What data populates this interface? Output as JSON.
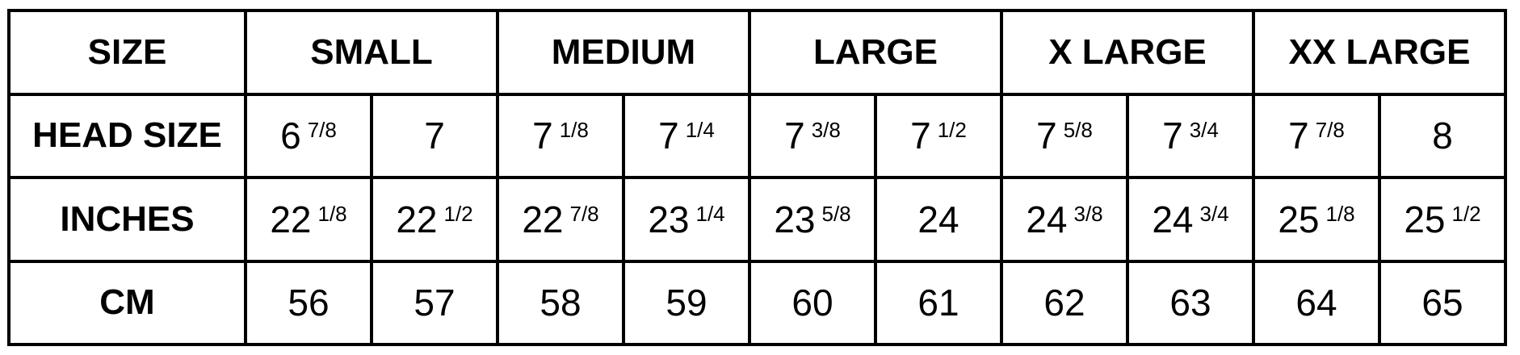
{
  "row_labels": {
    "size": "SIZE",
    "head_size": "HEAD SIZE",
    "inches": "INCHES",
    "cm": "CM"
  },
  "sizes": [
    "SMALL",
    "MEDIUM",
    "LARGE",
    "X LARGE",
    "XX LARGE"
  ],
  "head_size": [
    {
      "whole": "6",
      "frac": "7/8"
    },
    {
      "whole": "7",
      "frac": ""
    },
    {
      "whole": "7",
      "frac": "1/8"
    },
    {
      "whole": "7",
      "frac": "1/4"
    },
    {
      "whole": "7",
      "frac": "3/8"
    },
    {
      "whole": "7",
      "frac": "1/2"
    },
    {
      "whole": "7",
      "frac": "5/8"
    },
    {
      "whole": "7",
      "frac": "3/4"
    },
    {
      "whole": "7",
      "frac": "7/8"
    },
    {
      "whole": "8",
      "frac": ""
    }
  ],
  "inches": [
    {
      "whole": "22",
      "frac": "1/8"
    },
    {
      "whole": "22",
      "frac": "1/2"
    },
    {
      "whole": "22",
      "frac": "7/8"
    },
    {
      "whole": "23",
      "frac": "1/4"
    },
    {
      "whole": "23",
      "frac": "5/8"
    },
    {
      "whole": "24",
      "frac": ""
    },
    {
      "whole": "24",
      "frac": "3/8"
    },
    {
      "whole": "24",
      "frac": "3/4"
    },
    {
      "whole": "25",
      "frac": "1/8"
    },
    {
      "whole": "25",
      "frac": "1/2"
    }
  ],
  "cm": [
    "56",
    "57",
    "58",
    "59",
    "60",
    "61",
    "62",
    "63",
    "64",
    "65"
  ]
}
